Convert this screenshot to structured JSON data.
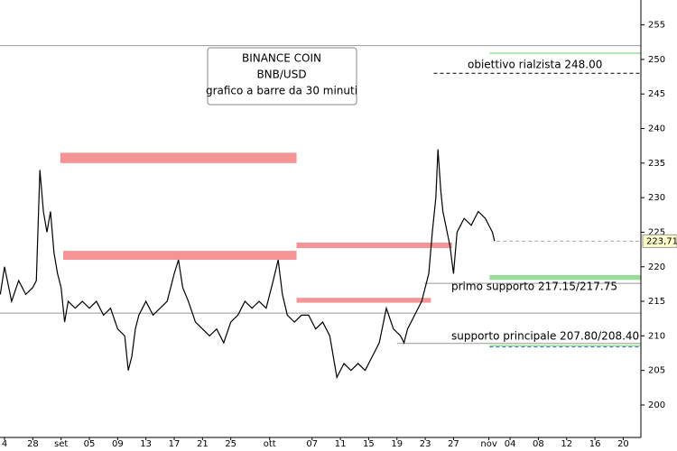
{
  "chart_data": {
    "type": "line",
    "title": [
      "BINANCE COIN",
      "BNB/USD",
      "grafico a barre da 30 minuti"
    ],
    "x": [
      -0.6,
      0,
      1,
      2,
      3,
      4,
      4.5,
      5,
      5.5,
      6,
      6.5,
      7,
      7.5,
      8,
      8.5,
      9,
      10,
      11,
      12,
      13,
      14,
      15,
      16,
      17,
      17.5,
      18,
      18.5,
      19,
      20,
      21,
      22,
      23,
      24,
      24.6,
      25.2,
      26,
      27,
      28,
      29,
      30,
      31,
      32,
      33,
      34,
      35,
      36,
      37,
      38,
      38.7,
      39.3,
      40,
      41,
      42,
      43,
      44,
      45,
      46,
      46.5,
      47,
      48,
      49,
      50,
      51,
      52,
      53,
      54,
      55,
      56,
      56.5,
      57,
      58,
      59,
      60,
      60.5,
      61,
      61.3,
      61.7,
      62,
      63,
      63.5,
      64,
      65,
      66,
      67,
      68,
      68.5,
      69,
      69.3
    ],
    "series": [
      {
        "name": "BNB/USD",
        "color": "#000000",
        "values": [
          216,
          220,
          215,
          218,
          216,
          217,
          218,
          234,
          228,
          225,
          228,
          222,
          219,
          217,
          212,
          215,
          214,
          215,
          214,
          215,
          213,
          214,
          211,
          210,
          205,
          207,
          211,
          213,
          215,
          213,
          214,
          215,
          219,
          221,
          217,
          215,
          212,
          211,
          210,
          211,
          209,
          212,
          213,
          215,
          214,
          215,
          214,
          218,
          221,
          216,
          213,
          212,
          213,
          213,
          211,
          212,
          210,
          207,
          204,
          206,
          205,
          206,
          205,
          207,
          209,
          214,
          211,
          210,
          209,
          211,
          213,
          215,
          219,
          225,
          230,
          237,
          231,
          228,
          223,
          219,
          225,
          227,
          226,
          228,
          227,
          226,
          225,
          223.71
        ]
      }
    ],
    "last": {
      "value": 223.71,
      "label": "223,71"
    },
    "xlim": [
      -0.64,
      90
    ],
    "xticks": [
      {
        "value": 0,
        "label": "4"
      },
      {
        "value": 4,
        "label": "28"
      },
      {
        "value": 8,
        "label": "set"
      },
      {
        "value": 12,
        "label": "05"
      },
      {
        "value": 16,
        "label": "09"
      },
      {
        "value": 20,
        "label": "13"
      },
      {
        "value": 24,
        "label": "17"
      },
      {
        "value": 28,
        "label": "21"
      },
      {
        "value": 32,
        "label": "25"
      },
      {
        "value": 37.5,
        "label": "ott"
      },
      {
        "value": 43.5,
        "label": "07"
      },
      {
        "value": 47.5,
        "label": "11"
      },
      {
        "value": 51.5,
        "label": "15"
      },
      {
        "value": 55.5,
        "label": "19"
      },
      {
        "value": 59.5,
        "label": "23"
      },
      {
        "value": 63.5,
        "label": "27"
      },
      {
        "value": 68.5,
        "label": "nov"
      },
      {
        "value": 71.5,
        "label": "04"
      },
      {
        "value": 75.5,
        "label": "08"
      },
      {
        "value": 79.5,
        "label": "12"
      },
      {
        "value": 83.5,
        "label": "16"
      },
      {
        "value": 87.5,
        "label": "20"
      }
    ],
    "ylim": [
      195.3,
      258.6
    ],
    "yticks": [
      200,
      205,
      210,
      215,
      220,
      225,
      230,
      235,
      240,
      245,
      250,
      255
    ],
    "levels": [
      {
        "y": 252,
        "x": [
          -0.64,
          90
        ],
        "color": "#999999",
        "style": "line"
      },
      {
        "y": 213.3,
        "x": [
          -0.64,
          90
        ],
        "color": "#999999",
        "style": "line"
      },
      {
        "y": 235,
        "y2": 236.5,
        "x": [
          7.9,
          41.3
        ],
        "color": "#f49494",
        "style": "band"
      },
      {
        "y": 221,
        "y2": 222.3,
        "x": [
          8.3,
          41.3
        ],
        "color": "#f49494",
        "style": "band"
      },
      {
        "y": 222.7,
        "y2": 223.5,
        "x": [
          41.3,
          63.3
        ],
        "color": "#f49494",
        "style": "band"
      },
      {
        "y": 214.8,
        "y2": 215.5,
        "x": [
          41.3,
          60.3
        ],
        "color": "#f49494",
        "style": "band"
      },
      {
        "y": 250.9,
        "x": [
          68.6,
          90
        ],
        "color": "#66cc66",
        "style": "line"
      },
      {
        "y": 248,
        "x": [
          60.7,
          90
        ],
        "color": "#000000",
        "style": "dashed"
      },
      {
        "y": 218.1,
        "y2": 218.8,
        "x": [
          68.6,
          90
        ],
        "color": "#99dd99",
        "style": "band"
      },
      {
        "y": 217.6,
        "x": [
          59.4,
          90
        ],
        "color": "#999999",
        "style": "line"
      },
      {
        "y": 208.6,
        "x": [
          68.6,
          90
        ],
        "color": "#66cc66",
        "style": "line"
      },
      {
        "y": 208.4,
        "x": [
          68.6,
          90
        ],
        "color": "#3366cc",
        "style": "dashed"
      },
      {
        "y": 208.9,
        "x": [
          55.5,
          90
        ],
        "color": "#999999",
        "style": "line"
      },
      {
        "y": 223.71,
        "x": [
          69.6,
          90
        ],
        "color": "#aaaaaa",
        "style": "dashed"
      }
    ],
    "annotations": [
      "obiettivo rialzista 248.00",
      "primo supporto 217.15/217.75",
      "supporto principale 207.80/208.40"
    ]
  }
}
